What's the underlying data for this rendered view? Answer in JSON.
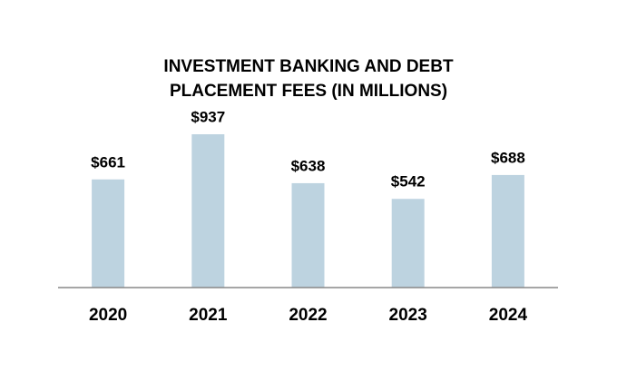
{
  "chart_data": {
    "type": "bar",
    "title": "INVESTMENT BANKING AND DEBT\nPLACEMENT FEES (IN MILLIONS)",
    "categories": [
      "2020",
      "2021",
      "2022",
      "2023",
      "2024"
    ],
    "values": [
      661,
      937,
      638,
      542,
      688
    ],
    "value_labels": [
      "$661",
      "$937",
      "$638",
      "$542",
      "$688"
    ],
    "color": "#bdd3e0"
  }
}
